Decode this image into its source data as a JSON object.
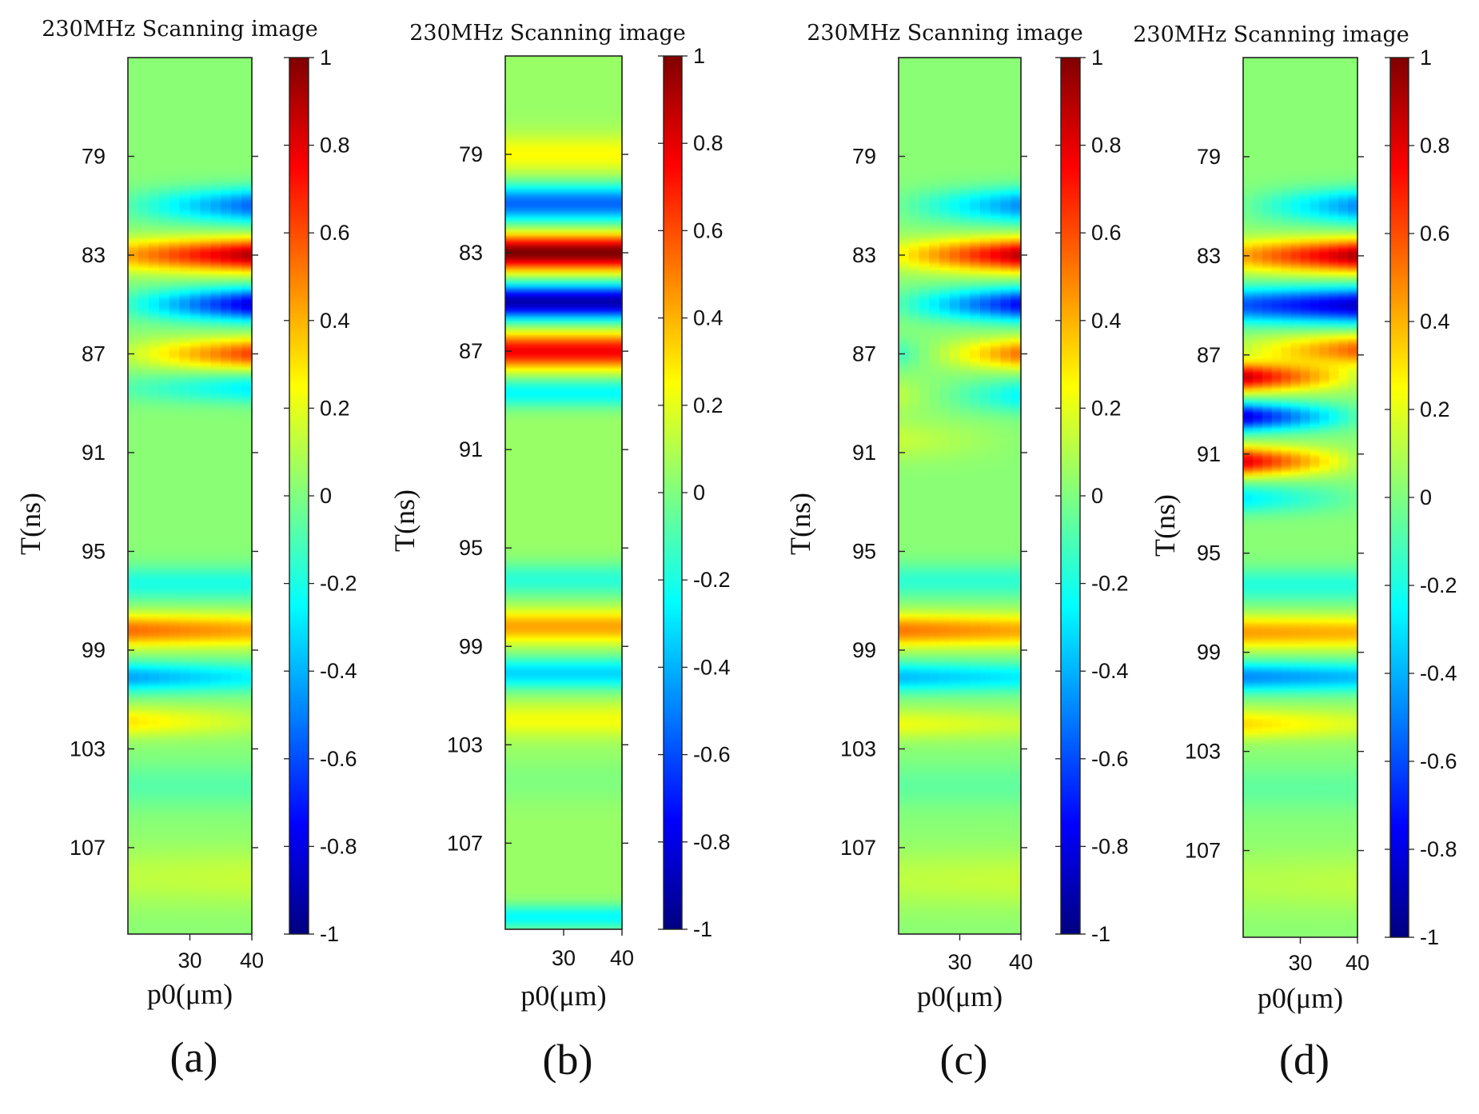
{
  "figure": {
    "panels": [
      {
        "id": "a",
        "label": "(a)"
      },
      {
        "id": "b",
        "label": "(b)"
      },
      {
        "id": "c",
        "label": "(c)"
      },
      {
        "id": "d",
        "label": "(d)"
      }
    ]
  },
  "chart_data": [
    {
      "type": "heatmap",
      "panel": "(a)",
      "title": "230MHz Scanning image",
      "xlabel": "p0(μm)",
      "ylabel": "T(ns)",
      "x_ticks": [
        "30",
        "40"
      ],
      "x_range": [
        20,
        40
      ],
      "y_ticks": [
        "79",
        "83",
        "87",
        "91",
        "95",
        "99",
        "103",
        "107"
      ],
      "y_range": [
        75,
        110.5
      ],
      "colorbar": {
        "ticks": [
          "1",
          "0.8",
          "0.6",
          "0.4",
          "0.2",
          "0",
          "-0.2",
          "-0.4",
          "-0.6",
          "-0.8",
          "-1"
        ],
        "range": [
          -1,
          1
        ],
        "colormap": "jet"
      },
      "background": 0.02,
      "bands": [
        {
          "t": 81.0,
          "w": 0.7,
          "a0": -0.1,
          "a1": -0.58
        },
        {
          "t": 83.0,
          "w": 0.65,
          "a0": 0.4,
          "a1": 0.9
        },
        {
          "t": 85.0,
          "w": 0.65,
          "a0": -0.15,
          "a1": -0.85
        },
        {
          "t": 87.0,
          "w": 0.6,
          "a0": 0.1,
          "a1": 0.62
        },
        {
          "t": 88.4,
          "w": 0.6,
          "a0": -0.1,
          "a1": -0.3
        },
        {
          "t": 96.3,
          "w": 0.7,
          "a0": -0.22,
          "a1": -0.22
        },
        {
          "t": 98.2,
          "w": 0.65,
          "a0": 0.52,
          "a1": 0.4
        },
        {
          "t": 100.1,
          "w": 0.6,
          "a0": -0.45,
          "a1": -0.28
        },
        {
          "t": 101.9,
          "w": 0.6,
          "a0": 0.28,
          "a1": 0.1
        },
        {
          "t": 104.5,
          "w": 0.9,
          "a0": -0.1,
          "a1": -0.1
        },
        {
          "t": 108.2,
          "w": 1.2,
          "a0": 0.1,
          "a1": 0.12
        }
      ]
    },
    {
      "type": "heatmap",
      "panel": "(b)",
      "title": "230MHz Scanning image",
      "xlabel": "p0(μm)",
      "ylabel": "T(ns)",
      "x_ticks": [
        "30",
        "40"
      ],
      "x_range": [
        20,
        40
      ],
      "y_ticks": [
        "79",
        "83",
        "87",
        "91",
        "95",
        "99",
        "103",
        "107"
      ],
      "y_range": [
        75,
        110.5
      ],
      "colorbar": {
        "ticks": [
          "1",
          "0.8",
          "0.6",
          "0.4",
          "0.2",
          "0",
          "-0.2",
          "-0.4",
          "-0.6",
          "-0.8",
          "-1"
        ],
        "range": [
          -1,
          1
        ],
        "colormap": "jet"
      },
      "background": 0.05,
      "bands": [
        {
          "t": 79.0,
          "w": 0.8,
          "a0": 0.2,
          "a1": 0.2
        },
        {
          "t": 81.0,
          "w": 0.75,
          "a0": -0.6,
          "a1": -0.6
        },
        {
          "t": 83.0,
          "w": 0.7,
          "a0": 0.96,
          "a1": 0.96
        },
        {
          "t": 85.0,
          "w": 0.7,
          "a0": -0.96,
          "a1": -0.96
        },
        {
          "t": 87.0,
          "w": 0.7,
          "a0": 0.72,
          "a1": 0.72
        },
        {
          "t": 88.7,
          "w": 0.6,
          "a0": -0.3,
          "a1": -0.3
        },
        {
          "t": 96.3,
          "w": 0.7,
          "a0": -0.22,
          "a1": -0.22
        },
        {
          "t": 98.2,
          "w": 0.65,
          "a0": 0.38,
          "a1": 0.38
        },
        {
          "t": 100.1,
          "w": 0.65,
          "a0": -0.38,
          "a1": -0.38
        },
        {
          "t": 102.0,
          "w": 0.7,
          "a0": 0.18,
          "a1": 0.18
        },
        {
          "t": 104.5,
          "w": 0.9,
          "a0": -0.05,
          "a1": -0.05
        },
        {
          "t": 110.0,
          "w": 0.5,
          "a0": -0.3,
          "a1": -0.3
        }
      ]
    },
    {
      "type": "heatmap",
      "panel": "(c)",
      "title": "230MHz Scanning image",
      "xlabel": "p0(μm)",
      "ylabel": "T(ns)",
      "x_ticks": [
        "30",
        "40"
      ],
      "x_range": [
        20,
        40
      ],
      "y_ticks": [
        "79",
        "83",
        "87",
        "91",
        "95",
        "99",
        "103",
        "107"
      ],
      "y_range": [
        75,
        110.5
      ],
      "colorbar": {
        "ticks": [
          "1",
          "0.8",
          "0.6",
          "0.4",
          "0.2",
          "0",
          "-0.2",
          "-0.4",
          "-0.6",
          "-0.8",
          "-1"
        ],
        "range": [
          -1,
          1
        ],
        "colormap": "jet"
      },
      "background": 0.02,
      "bands": [
        {
          "t": 81.0,
          "w": 0.7,
          "a0": -0.05,
          "a1": -0.5
        },
        {
          "t": 83.0,
          "w": 0.65,
          "a0": 0.22,
          "a1": 0.88
        },
        {
          "t": 85.0,
          "w": 0.65,
          "a0": -0.1,
          "a1": -0.78
        },
        {
          "t": 87.0,
          "w": 0.6,
          "a0": -0.15,
          "a1": 0.52
        },
        {
          "t": 88.7,
          "w": 0.7,
          "a0": 0.1,
          "a1": -0.28
        },
        {
          "t": 90.5,
          "w": 0.8,
          "a0": 0.12,
          "a1": 0.0
        },
        {
          "t": 96.2,
          "w": 0.7,
          "a0": -0.18,
          "a1": -0.18
        },
        {
          "t": 98.2,
          "w": 0.65,
          "a0": 0.5,
          "a1": 0.4
        },
        {
          "t": 100.1,
          "w": 0.6,
          "a0": -0.4,
          "a1": -0.3
        },
        {
          "t": 102.0,
          "w": 0.6,
          "a0": 0.2,
          "a1": 0.12
        },
        {
          "t": 104.5,
          "w": 0.9,
          "a0": -0.08,
          "a1": -0.08
        },
        {
          "t": 108.3,
          "w": 1.2,
          "a0": 0.1,
          "a1": 0.12
        }
      ]
    },
    {
      "type": "heatmap",
      "panel": "(d)",
      "title": "230MHz Scanning image",
      "xlabel": "p0(μm)",
      "ylabel": "T(ns)",
      "x_ticks": [
        "30",
        "40"
      ],
      "x_range": [
        20,
        40
      ],
      "y_ticks": [
        "79",
        "83",
        "87",
        "91",
        "95",
        "99",
        "103",
        "107"
      ],
      "y_range": [
        75,
        110.5
      ],
      "colorbar": {
        "ticks": [
          "1",
          "0.8",
          "0.6",
          "0.4",
          "0.2",
          "0",
          "-0.2",
          "-0.4",
          "-0.6",
          "-0.8",
          "-1"
        ],
        "range": [
          -1,
          1
        ],
        "colormap": "jet"
      },
      "background": 0.02,
      "bands": [
        {
          "t": 81.0,
          "w": 0.7,
          "a0": -0.05,
          "a1": -0.5
        },
        {
          "t": 83.0,
          "w": 0.65,
          "a0": 0.4,
          "a1": 0.9
        },
        {
          "t": 85.0,
          "w": 0.7,
          "a0": -0.6,
          "a1": -0.88
        },
        {
          "t": 86.8,
          "w": 0.6,
          "a0": 0.1,
          "a1": 0.55
        },
        {
          "t": 87.9,
          "w": 0.55,
          "a0": 0.85,
          "a1": 0.1
        },
        {
          "t": 89.5,
          "w": 0.55,
          "a0": -0.85,
          "a1": -0.1
        },
        {
          "t": 91.3,
          "w": 0.55,
          "a0": 0.8,
          "a1": 0.05
        },
        {
          "t": 92.8,
          "w": 0.6,
          "a0": -0.3,
          "a1": -0.05
        },
        {
          "t": 96.3,
          "w": 0.7,
          "a0": -0.2,
          "a1": -0.2
        },
        {
          "t": 98.2,
          "w": 0.65,
          "a0": 0.42,
          "a1": 0.38
        },
        {
          "t": 100.0,
          "w": 0.6,
          "a0": -0.5,
          "a1": -0.4
        },
        {
          "t": 101.9,
          "w": 0.6,
          "a0": 0.3,
          "a1": 0.15
        },
        {
          "t": 104.5,
          "w": 0.9,
          "a0": -0.08,
          "a1": -0.08
        },
        {
          "t": 108.3,
          "w": 1.2,
          "a0": 0.08,
          "a1": 0.1
        }
      ]
    }
  ]
}
